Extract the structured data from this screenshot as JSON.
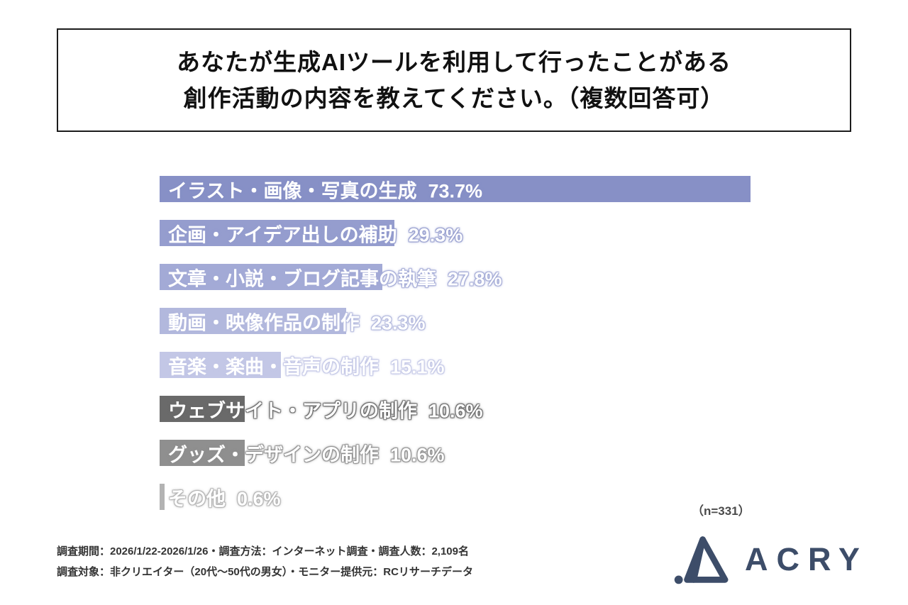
{
  "title": {
    "line1": "あなたが生成AIツールを利用して行ったことがある",
    "line2": "創作活動の内容を教えてください。（複数回答可）"
  },
  "chart_data": {
    "type": "bar",
    "orientation": "horizontal",
    "title": "あなたが生成AIツールを利用して行ったことがある創作活動の内容を教えてください。（複数回答可）",
    "categories": [
      "イラスト・画像・写真の生成",
      "企画・アイデア出しの補助",
      "文章・小説・ブログ記事の執筆",
      "動画・映像作品の制作",
      "音楽・楽曲・音声の制作",
      "ウェブサイト・アプリの制作",
      "グッズ・デザインの制作",
      "その他"
    ],
    "values": [
      73.7,
      29.3,
      27.8,
      23.3,
      15.1,
      10.6,
      10.6,
      0.6
    ],
    "value_labels": [
      "73.7%",
      "29.3%",
      "27.8%",
      "23.3%",
      "15.1%",
      "10.6%",
      "10.6%",
      "0.6%"
    ],
    "bar_colors": [
      "#8790c6",
      "#959dce",
      "#a3aad6",
      "#b2b8dd",
      "#c3c7e6",
      "#6a6a6a",
      "#8f8f8f",
      "#b3b3b3"
    ],
    "xlim": [
      0,
      100
    ],
    "grid": false,
    "legend": false,
    "sample_note": "（n=331）"
  },
  "footer": {
    "line1": "調査期間：2026/1/22-2026/1/26・調査方法：インターネット調査・調査人数：2,109名",
    "line2": "調査対象：非クリエイター（20代～50代の男女）・モニター提供元：RCリサーチデータ"
  },
  "logo": {
    "text": "ACRY",
    "color": "#3d4d69"
  }
}
